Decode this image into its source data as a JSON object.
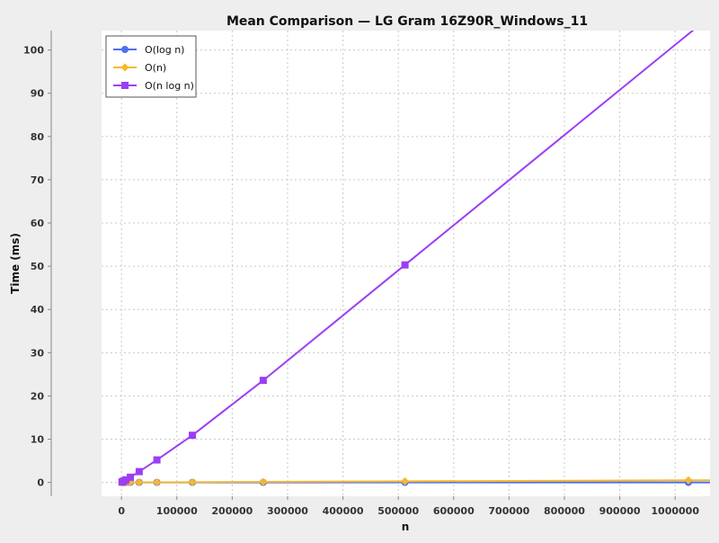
{
  "chart_data": {
    "type": "line",
    "title": "Mean Comparison — LG Gram 16Z90R_Windows_11",
    "xlabel": "n",
    "ylabel": "Time (ms)",
    "xlim": [
      -36000,
      1063000
    ],
    "ylim": [
      -3.2,
      104.5
    ],
    "xticks": [
      0,
      100000,
      200000,
      300000,
      400000,
      500000,
      600000,
      700000,
      800000,
      900000,
      1000000
    ],
    "yticks": [
      0,
      10,
      20,
      30,
      40,
      50,
      60,
      70,
      80,
      90,
      100
    ],
    "grid": true,
    "legend_position": "top-left",
    "series": [
      {
        "name": "O(log n)",
        "color": "#4f6ff0",
        "marker": "circle",
        "x": [
          1000,
          2000,
          4000,
          8000,
          16000,
          32000,
          64000,
          128000,
          256000,
          512000,
          1024000
        ],
        "y": [
          0.002,
          0.002,
          0.002,
          0.002,
          0.002,
          0.002,
          0.002,
          0.002,
          0.003,
          0.003,
          0.003
        ]
      },
      {
        "name": "O(n)",
        "color": "#f5b82e",
        "marker": "diamond",
        "x": [
          1000,
          2000,
          4000,
          8000,
          16000,
          32000,
          64000,
          128000,
          256000,
          512000,
          1024000
        ],
        "y": [
          0.0,
          0.0,
          0.0,
          0.0,
          0.01,
          0.02,
          0.03,
          0.06,
          0.12,
          0.25,
          0.5
        ]
      },
      {
        "name": "O(n log n)",
        "color": "#9b3ff5",
        "marker": "square",
        "x": [
          1000,
          2000,
          4000,
          8000,
          16000,
          32000,
          64000,
          128000,
          256000,
          512000
        ],
        "y": [
          0.08,
          0.15,
          0.32,
          0.6,
          1.2,
          2.5,
          5.2,
          10.9,
          23.6,
          50.3
        ]
      }
    ]
  }
}
